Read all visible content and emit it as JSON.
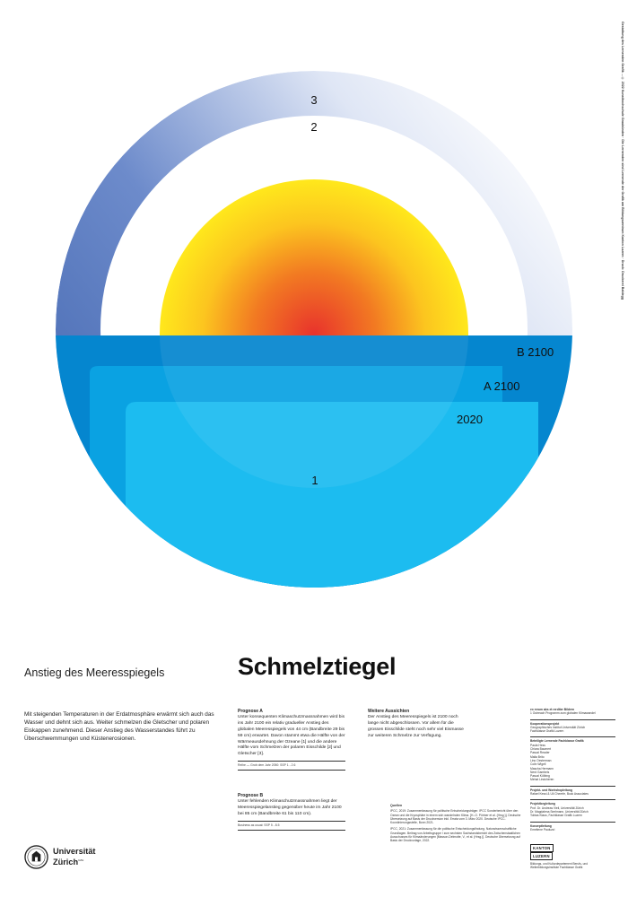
{
  "side_credit": "Gestaltung des Lernenden Grafik ... © 2022 Kunsthochschule Graubünden · Die Lernenden sind Lernende der Grafik am Bildungszentrum Kanton Luzern · Druck: Druckerei Baldegg",
  "diagram": {
    "labels": {
      "ring_3": "3",
      "ring_2": "2",
      "water_1": "1",
      "level_2020": "2020",
      "level_a": "A 2100",
      "level_b": "B 2100"
    },
    "colors": {
      "ring_blue": "#3f63ad",
      "sun_yellow": "#ffe31d",
      "sun_red": "#e8332c",
      "water_light": "#1cbcf0",
      "water_mid": "#0fa9e6",
      "water_dark": "#0581ce"
    }
  },
  "header": {
    "subtitle": "Anstieg des Meeresspiegels",
    "title": "Schmelztiegel"
  },
  "intro": "Mit steigenden Temperaturen in der Erdatmosphäre erwärmt sich auch das Wasser und dehnt sich aus. Weiter schmelzen die Gletscher und polaren Eiskappen zunehmend. Dieser Anstieg des Wasserstandes führt zu Überschwemmungen und Küstenerosionen.",
  "prognose_a": {
    "heading": "Prognose A",
    "text": "Unter konsequenten Klimaschutzmassnahmen wird bis ins Jahr 2100 ein relativ gradueller Anstieg des globalen Meeresspiegels von 44 cm (Bandbreite 29 bis 59 cm) erwartet. Davon stammt etwa die Hälfte von der Wärmeausdehnung der Ozeane [1] und die andere Hälfte vom Schmelzen der polaren Eisschilde [2] und Gletscher [3].",
    "note": "Reihe — Grob dem Jahr 2050: SSP 1 - 2.6"
  },
  "prognose_b": {
    "heading": "Prognose B",
    "text": "Unter fehlenden Klimaschutzmassnahmen liegt der Meeresspiegelanstieg gegenüber heute im Jahr 2100 bei 85 cm (Bandbreite 61 bis 110 cm).",
    "note": "Business as usual: SSP 5 - 8.5"
  },
  "aussichten": {
    "heading": "Weitere Aussichten",
    "text": "Der Anstieg des Meeresspiegels ist 2100 noch lange nicht abgeschlossen. Vor allem für die grossen Eisschilde steht noch sehr viel Eismasse zur weiteren Schmelze zur Verfügung."
  },
  "sources": {
    "heading": "Quellen",
    "items": [
      "IPCC, 2019: Zusammenfassung für politische Entscheidungsträger. IPCC Sonderbericht über den Ozean und die Kryosphäre in einem sich wandelnden Klima. [H.-O. Pörtner et al. (Hrsg.)]. Deutsche Übersetzung auf Basis der Druckversion inkl. Errata vom 3. März 2020. Deutsche IPCC-Koordinierungsstelle, Bonn 2021.",
      "IPCC, 2021: Zusammenfassung für die politische Entscheidungsfindung. Naturwissenschaftliche Grundlagen. Beitrag von Arbeitsgruppe I zum sechsten Sachstandsbericht des Zwischenstaatlichen Ausschusses für Klimaänderungen [Masson-Delmotte, V., et al. (Hrsg.)]. Deutsche Übersetzung auf Basis der Druckvorlage, 2022."
    ]
  },
  "credits": {
    "blocks": [
      {
        "head": "ex rerum abs et rerditer Bildern",
        "lines": [
          "1 Outreach Programm zum globalen Klimawandel"
        ]
      },
      {
        "head": "Kooperationsprojekt",
        "lines": [
          "Geographisches Institut Universität Zürich",
          "Fachklasse Grafik Luzern"
        ]
      },
      {
        "head": "Beteiligte Lernende Fachklasse Grafik",
        "lines": [
          "Paula Hess",
          "Chiara Baumert",
          "Pascal Reader",
          "Malia Brito",
          "Lino Oesterman",
          "Colin Wigell",
          "Mascha Hermann",
          "Nerd Gambeis",
          "Pascal Kölbing",
          "Mehat Lindcheren"
        ]
      },
      {
        "head": "Projekt- und Workshopleitung",
        "lines": [
          "Rafael Kessi & Uli Cheerfe, Bock Associates"
        ]
      },
      {
        "head": "Projektbegleitung",
        "lines": [
          "Prof. Dr. Andreas Vieli, Universität Zürich",
          "Dr. Magdalena Seelmann, Universität Zürich",
          "Tobias Klaus, Fachklasse Grafik Luzern"
        ]
      },
      {
        "head": "Konzeptleitung",
        "lines": [
          "Emeltene Pauluzzi"
        ]
      }
    ]
  },
  "logo_uzh": {
    "line1": "Universität",
    "line2": "Zürich",
    "mark": "UZH"
  },
  "logo_kanton": {
    "word1": "KANTON",
    "word2": "LUZERN",
    "caption": "Bildungs- und Kulturdepartement Berufs- und Weiterbildungsinstitute Fachklasse Grafik"
  }
}
